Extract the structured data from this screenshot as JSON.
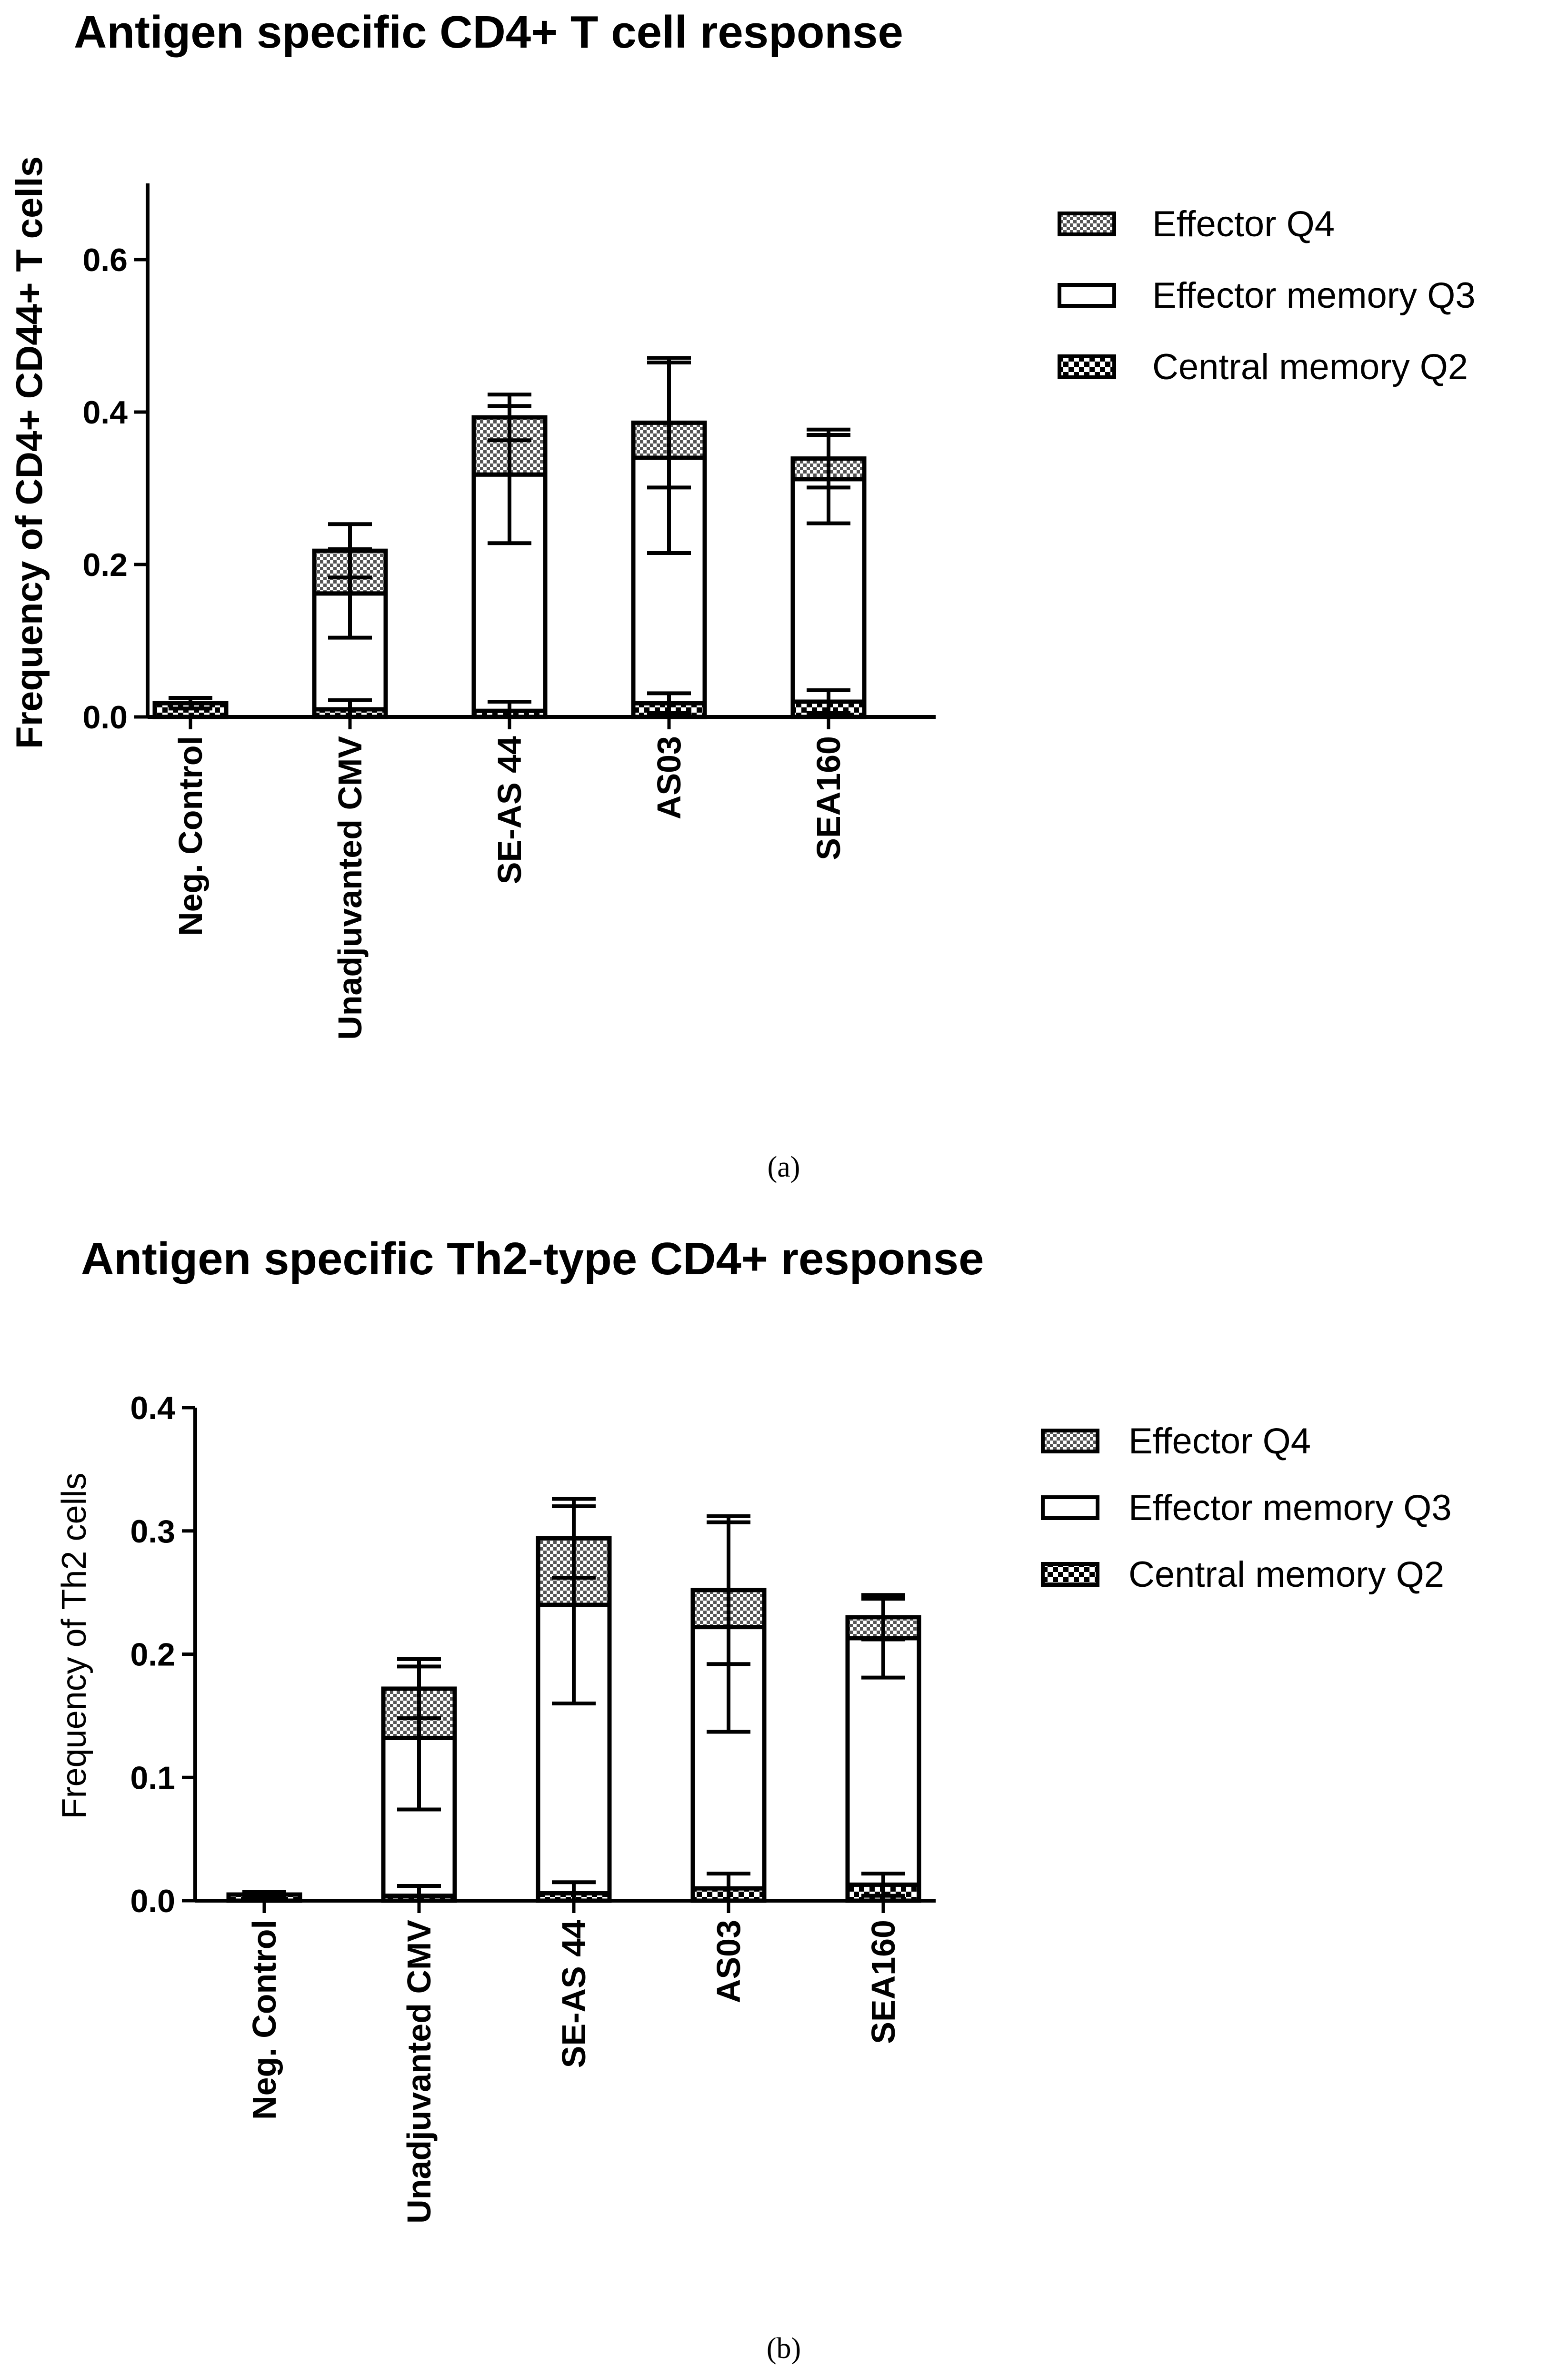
{
  "chart_data": [
    {
      "type": "bar",
      "stacked": true,
      "title": "Antigen specific CD4+ T cell response",
      "ylabel": "Frequency of CD4+ CD44+ T cells",
      "ylim": [
        0,
        0.7
      ],
      "yticks": [
        "0.0",
        "0.2",
        "0.4",
        "0.6"
      ],
      "categories": [
        "Neg. Control",
        "Unadjuvanted CMV",
        "SE-AS 44",
        "AS03",
        "SEA160"
      ],
      "series": [
        {
          "name": "Central memory Q2",
          "values": [
            0.018,
            0.01,
            0.008,
            0.018,
            0.02
          ],
          "err": [
            0.007,
            0.012,
            0.012,
            0.013,
            0.015
          ]
        },
        {
          "name": "Effector memory Q3",
          "values": [
            0,
            0.152,
            0.31,
            0.322,
            0.292
          ],
          "err": [
            0,
            0.058,
            0.09,
            0.125,
            0.058
          ]
        },
        {
          "name": "Effector Q4",
          "values": [
            0,
            0.056,
            0.075,
            0.046,
            0.027
          ],
          "err": [
            0,
            0.035,
            0.03,
            0.085,
            0.038
          ]
        }
      ],
      "legend": [
        "Effector Q4",
        "Effector memory Q3",
        "Central memory Q2"
      ],
      "caption": "(a)"
    },
    {
      "type": "bar",
      "stacked": true,
      "title": "Antigen specific Th2-type CD4+ response",
      "ylabel": "Frequency of Th2 cells",
      "ylim": [
        0,
        0.4
      ],
      "yticks": [
        "0.0",
        "0.1",
        "0.2",
        "0.3",
        "0.4"
      ],
      "categories": [
        "Neg. Control",
        "Unadjuvanted CMV",
        "SE-AS 44",
        "AS03",
        "SEA160"
      ],
      "series": [
        {
          "name": "Central memory Q2",
          "values": [
            0.005,
            0.004,
            0.006,
            0.01,
            0.013
          ],
          "err": [
            0.002,
            0.008,
            0.009,
            0.012,
            0.009
          ]
        },
        {
          "name": "Effector memory Q3",
          "values": [
            0,
            0.128,
            0.234,
            0.212,
            0.2
          ],
          "err": [
            0,
            0.058,
            0.08,
            0.085,
            0.032
          ]
        },
        {
          "name": "Effector Q4",
          "values": [
            0,
            0.04,
            0.054,
            0.03,
            0.017
          ],
          "err": [
            0,
            0.024,
            0.032,
            0.06,
            0.018
          ]
        }
      ],
      "legend": [
        "Effector Q4",
        "Effector memory Q3",
        "Central memory Q2"
      ],
      "caption": "(b)"
    }
  ]
}
